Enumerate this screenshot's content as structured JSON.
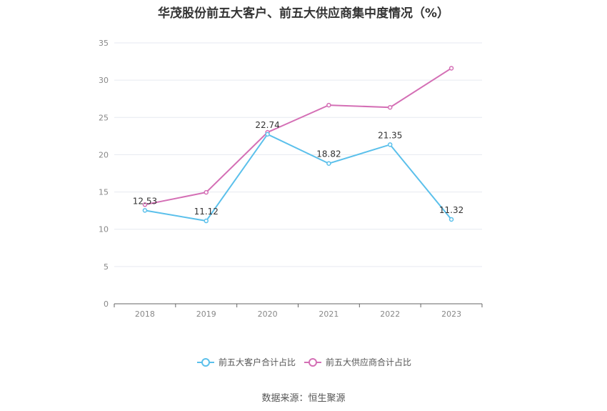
{
  "chart_data": {
    "type": "line",
    "title": "华茂股份前五大客户、前五大供应商集中度情况（%）",
    "categories": [
      "2018",
      "2019",
      "2020",
      "2021",
      "2022",
      "2023"
    ],
    "ylim": [
      0,
      35
    ],
    "yticks": [
      "0",
      "5",
      "10",
      "15",
      "20",
      "25",
      "30",
      "35"
    ],
    "grid": true,
    "legend_position": "bottom-center",
    "series": [
      {
        "name": "前五大客户合计占比",
        "color": "#5bc0eb",
        "values": [
          12.53,
          11.12,
          22.74,
          18.82,
          21.35,
          11.32
        ],
        "labels": [
          "12.53",
          "11.12",
          "22.74",
          "18.82",
          "21.35",
          "11.32"
        ]
      },
      {
        "name": "前五大供应商合计占比",
        "color": "#d46fb5",
        "values": [
          13.3,
          14.95,
          23.0,
          26.65,
          26.35,
          31.6
        ]
      }
    ]
  },
  "source": "数据来源：恒生聚源"
}
